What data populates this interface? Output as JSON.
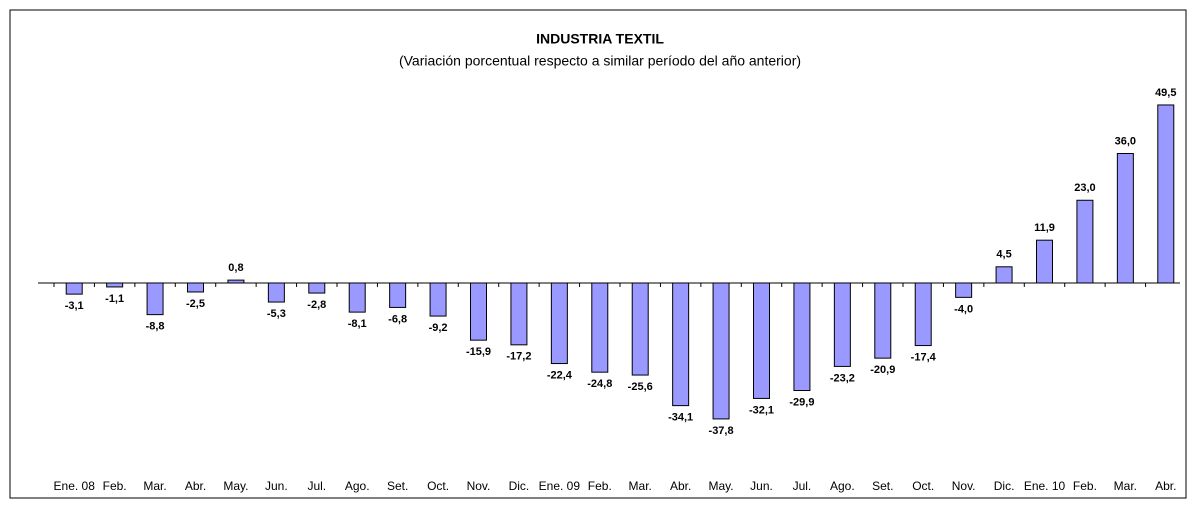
{
  "chart_data": {
    "type": "bar",
    "title": "INDUSTRIA TEXTIL",
    "subtitle": "(Variación porcentual respecto a similar período del año anterior)",
    "categories": [
      "Ene. 08",
      "Feb.",
      "Mar.",
      "Abr.",
      "May.",
      "Jun.",
      "Jul.",
      "Ago.",
      "Set.",
      "Oct.",
      "Nov.",
      "Dic.",
      "Ene. 09",
      "Feb.",
      "Mar.",
      "Abr.",
      "May.",
      "Jun.",
      "Jul.",
      "Ago.",
      "Set.",
      "Oct.",
      "Nov.",
      "Dic.",
      "Ene. 10",
      "Feb.",
      "Mar.",
      "Abr."
    ],
    "values": [
      -3.1,
      -1.1,
      -8.8,
      -2.5,
      0.8,
      -5.3,
      -2.8,
      -8.1,
      -6.8,
      -9.2,
      -15.9,
      -17.2,
      -22.4,
      -24.8,
      -25.6,
      -34.1,
      -37.8,
      -32.1,
      -29.9,
      -23.2,
      -20.9,
      -17.4,
      -4.0,
      4.5,
      11.9,
      23.0,
      36.0,
      49.5
    ],
    "value_labels": [
      "-3,1",
      "-1,1",
      "-8,8",
      "-2,5",
      "0,8",
      "-5,3",
      "-2,8",
      "-8,1",
      "-6,8",
      "-9,2",
      "-15,9",
      "-17,2",
      "-22,4",
      "-24,8",
      "-25,6",
      "-34,1",
      "-37,8",
      "-32,1",
      "-29,9",
      "-23,2",
      "-20,9",
      "-17,4",
      "-4,0",
      "4,5",
      "11,9",
      "23,0",
      "36,0",
      "49,5"
    ],
    "color": "#9999ff",
    "ylim": [
      -52,
      62
    ]
  }
}
